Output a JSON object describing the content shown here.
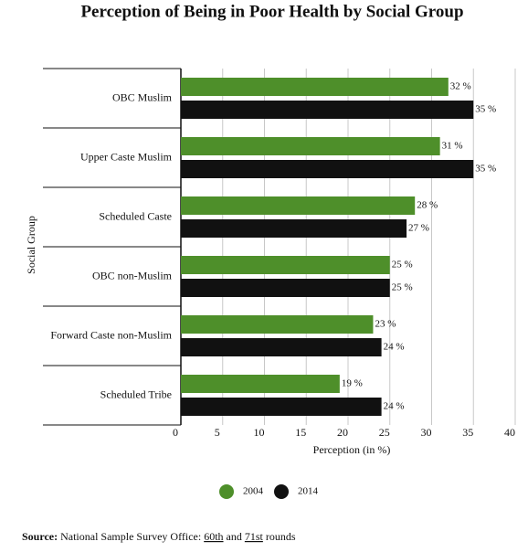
{
  "chart_data": {
    "type": "hbar",
    "title": "Perception of Being in Poor Health by Social Group",
    "y_label": "Social Group",
    "x_label": "Perception (in %)",
    "categories": [
      "OBC Muslim",
      "Upper Caste Muslim",
      "Scheduled Caste",
      "OBC non-Muslim",
      "Forward Caste non-Muslim",
      "Scheduled Tribe"
    ],
    "series": [
      {
        "name": "2004",
        "color": "#4e8f2a",
        "values": [
          32,
          31,
          28,
          25,
          23,
          19
        ],
        "value_labels": [
          "32 %",
          "31 %",
          "28 %",
          "25 %",
          "23 %",
          "19 %"
        ]
      },
      {
        "name": "2014",
        "color": "#111111",
        "values": [
          35,
          35,
          27,
          25,
          24,
          24
        ],
        "value_labels": [
          "35 %",
          "35 %",
          "27 %",
          "25 %",
          "24 %",
          "24 %"
        ]
      }
    ],
    "xlim": [
      0,
      40
    ],
    "xticks": [
      0,
      5,
      10,
      15,
      20,
      25,
      30,
      35,
      40
    ],
    "grid": true,
    "legend": "bottom",
    "source": [
      "Source:",
      " National Sample Survey Office: ",
      "60th",
      " and ",
      "71st",
      " rounds"
    ]
  }
}
